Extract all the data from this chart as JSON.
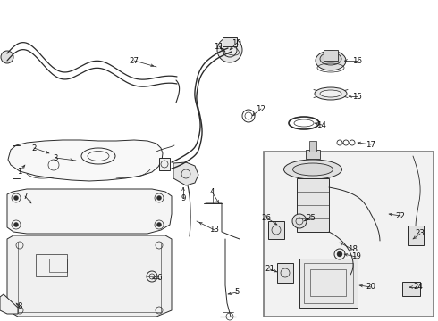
{
  "bg_color": "#ffffff",
  "line_color": "#2a2a2a",
  "gray_color": "#666666",
  "box_fill": "#f0f0f0",
  "box_edge": "#888888",
  "fig_width": 4.9,
  "fig_height": 3.6,
  "dpi": 100,
  "label_fs": 6.5,
  "lw": 0.7
}
